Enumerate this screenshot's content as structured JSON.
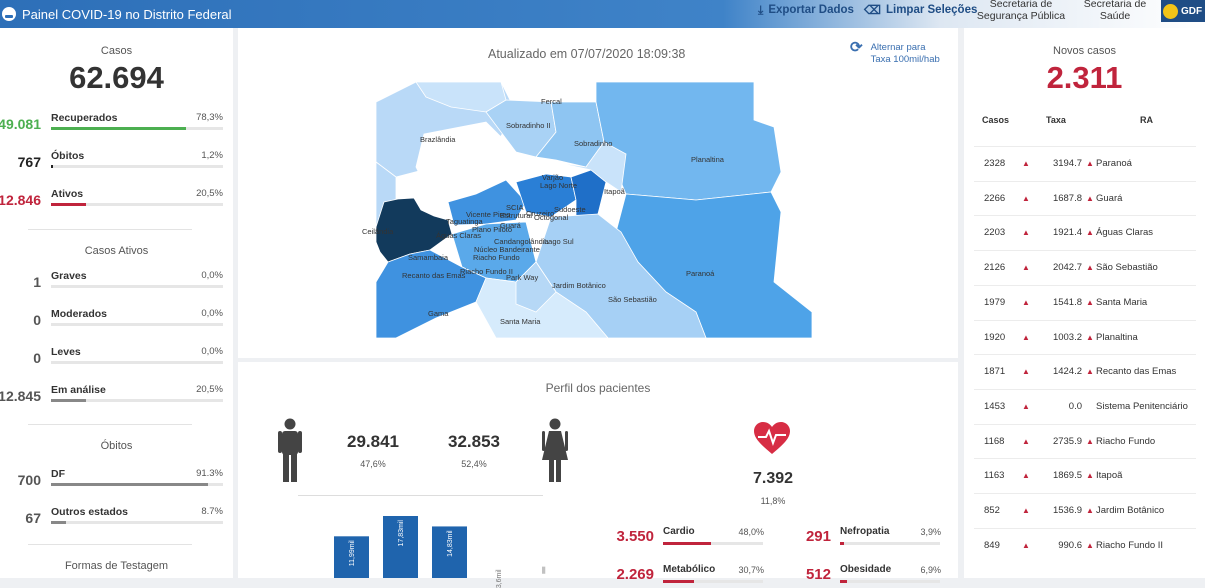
{
  "header": {
    "title": "Painel COVID-19 no Distrito Federal",
    "export_label": "Exportar Dados",
    "clear_label": "Limpar Seleções",
    "seg1_line1": "Secretaria de",
    "seg1_line2": "Segurança Pública",
    "seg2_line1": "Secretaria de",
    "seg2_line2": "Saúde",
    "logo_text": "GDF"
  },
  "left": {
    "casos_label": "Casos",
    "casos_value": "62.694",
    "summary": [
      {
        "num": "49.081",
        "label": "Recuperados",
        "pct": "78,3%",
        "fraction": 0.783,
        "color": "#4caf50",
        "numcolor": "#4caf50"
      },
      {
        "num": "767",
        "label": "Óbitos",
        "pct": "1,2%",
        "fraction": 0.012,
        "color": "#222222",
        "numcolor": "#222222"
      },
      {
        "num": "12.846",
        "label": "Ativos",
        "pct": "20,5%",
        "fraction": 0.205,
        "color": "#c0243c",
        "numcolor": "#c0243c"
      }
    ],
    "ativos_label": "Casos Ativos",
    "ativos": [
      {
        "num": "1",
        "label": "Graves",
        "pct": "0,0%",
        "fraction": 0.0
      },
      {
        "num": "0",
        "label": "Moderados",
        "pct": "0,0%",
        "fraction": 0.0
      },
      {
        "num": "0",
        "label": "Leves",
        "pct": "0,0%",
        "fraction": 0.0
      },
      {
        "num": "12.845",
        "label": "Em análise",
        "pct": "20,5%",
        "fraction": 0.205
      }
    ],
    "obitos_label": "Óbitos",
    "obitos": [
      {
        "num": "700",
        "label": "DF",
        "pct": "91.3%",
        "fraction": 0.913
      },
      {
        "num": "67",
        "label": "Outros estados",
        "pct": "8.7%",
        "fraction": 0.087
      }
    ],
    "testagem_label": "Formas de Testagem"
  },
  "center": {
    "updated": "Atualizado em 07/07/2020 18:09:38",
    "toggle_line1": "Alternar para",
    "toggle_line2": "Taxa 100mil/hab",
    "map_labels": [
      "Fercal",
      "Sobradinho II",
      "Brazlândia",
      "Sobradinho",
      "Planaltina",
      "Varjão",
      "Lago Norte",
      "Itapoã",
      "SCIA",
      "Vicente Pires",
      "Taguatinga",
      "Estrutural",
      "Cruzeiro",
      "Sudoeste",
      "Octogonal",
      "Ceilândia",
      "Plano Piloto",
      "Guará",
      "Águas Claras",
      "Candangolândia",
      "Lago Sul",
      "Samambaia",
      "Núcleo Bandeirante",
      "Riacho Fundo",
      "Riacho Fundo II",
      "Recanto das Emas",
      "Park Way",
      "Jardim Botânico",
      "Paranoá",
      "São Sebastião",
      "Gama",
      "Santa Maria"
    ]
  },
  "perfil": {
    "title": "Perfil dos pacientes",
    "male_num": "29.841",
    "male_pct": "47,6%",
    "female_num": "32.853",
    "female_pct": "52,4%",
    "bar_labels": [
      "11,99mil",
      "17,83mil",
      "14,83mil",
      "3,6mil"
    ],
    "bar_values": [
      11.99,
      17.83,
      14.83,
      3.6
    ],
    "comorb_num": "7.392",
    "comorb_pct": "11,8%",
    "comorb": [
      {
        "num": "3.550",
        "label": "Cardio",
        "pct": "48,0%",
        "fraction": 0.48
      },
      {
        "num": "291",
        "label": "Nefropatia",
        "pct": "3,9%",
        "fraction": 0.039
      },
      {
        "num": "2.269",
        "label": "Metabólico",
        "pct": "30,7%",
        "fraction": 0.307
      },
      {
        "num": "512",
        "label": "Obesidade",
        "pct": "6,9%",
        "fraction": 0.069
      }
    ]
  },
  "right": {
    "novos_label": "Novos casos",
    "novos_value": "2.311",
    "col_casos": "Casos",
    "col_taxa": "Taxa",
    "col_ra": "RA",
    "rows": [
      {
        "casos": "2328",
        "taxa": "3194.7",
        "ra": "Paranoá"
      },
      {
        "casos": "2266",
        "taxa": "1687.8",
        "ra": "Guará"
      },
      {
        "casos": "2203",
        "taxa": "1921.4",
        "ra": "Águas Claras"
      },
      {
        "casos": "2126",
        "taxa": "2042.7",
        "ra": "São Sebastião"
      },
      {
        "casos": "1979",
        "taxa": "1541.8",
        "ra": "Santa Maria"
      },
      {
        "casos": "1920",
        "taxa": "1003.2",
        "ra": "Planaltina"
      },
      {
        "casos": "1871",
        "taxa": "1424.2",
        "ra": "Recanto das Emas"
      },
      {
        "casos": "1453",
        "taxa": "0.0",
        "ra": "Sistema Penitenciário"
      },
      {
        "casos": "1168",
        "taxa": "2735.9",
        "ra": "Riacho Fundo"
      },
      {
        "casos": "1163",
        "taxa": "1869.5",
        "ra": "Itapoã"
      },
      {
        "casos": "852",
        "taxa": "1536.9",
        "ra": "Jardim Botânico"
      },
      {
        "casos": "849",
        "taxa": "990.6",
        "ra": "Riacho Fundo II"
      }
    ]
  },
  "colors": {
    "accent": "#2d6fb8",
    "red": "#c0243c",
    "green": "#4caf50",
    "bar": "#1f64ad"
  }
}
